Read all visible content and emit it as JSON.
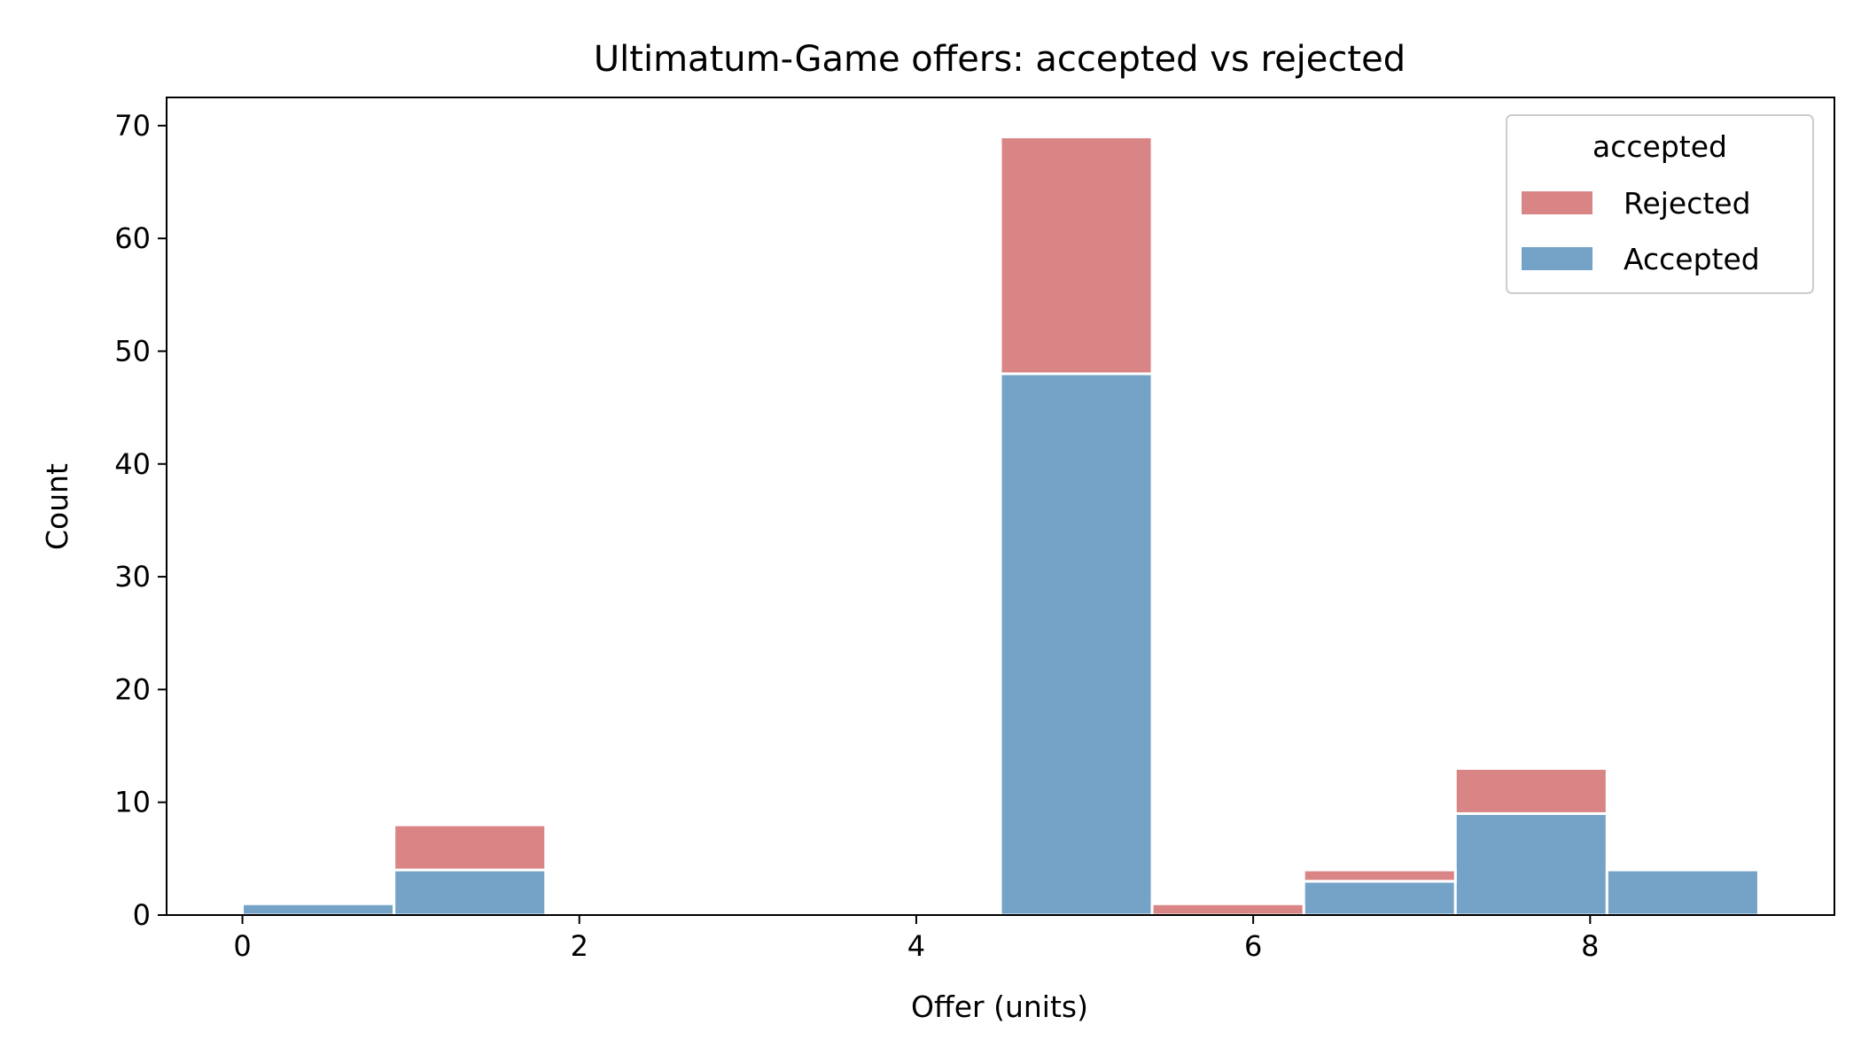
{
  "chart_data": {
    "type": "bar",
    "stacked": true,
    "histogram": true,
    "title": "Ultimatum-Game offers: accepted vs rejected",
    "xlabel": "Offer (units)",
    "ylabel": "Count",
    "xlim": [
      -0.45,
      9.45
    ],
    "ylim": [
      0,
      72.5
    ],
    "xticks": [
      0,
      2,
      4,
      6,
      8
    ],
    "yticks": [
      0,
      10,
      20,
      30,
      40,
      50,
      60,
      70
    ],
    "bin_edges": [
      0.0,
      0.9,
      1.8,
      2.7,
      3.6,
      4.5,
      5.4,
      6.3,
      7.2,
      8.1,
      9.0
    ],
    "grid": false,
    "legend": {
      "title": "accepted",
      "placement": "top-right"
    },
    "series": [
      {
        "name": "Accepted",
        "color": "#75a3c7",
        "values": [
          1,
          4,
          0,
          0,
          0,
          48,
          0,
          3,
          9,
          4
        ]
      },
      {
        "name": "Rejected",
        "color": "#d98585",
        "values": [
          0,
          4,
          0,
          0,
          0,
          21,
          1,
          1,
          4,
          0
        ]
      }
    ],
    "legend_order": [
      "Rejected",
      "Accepted"
    ]
  }
}
